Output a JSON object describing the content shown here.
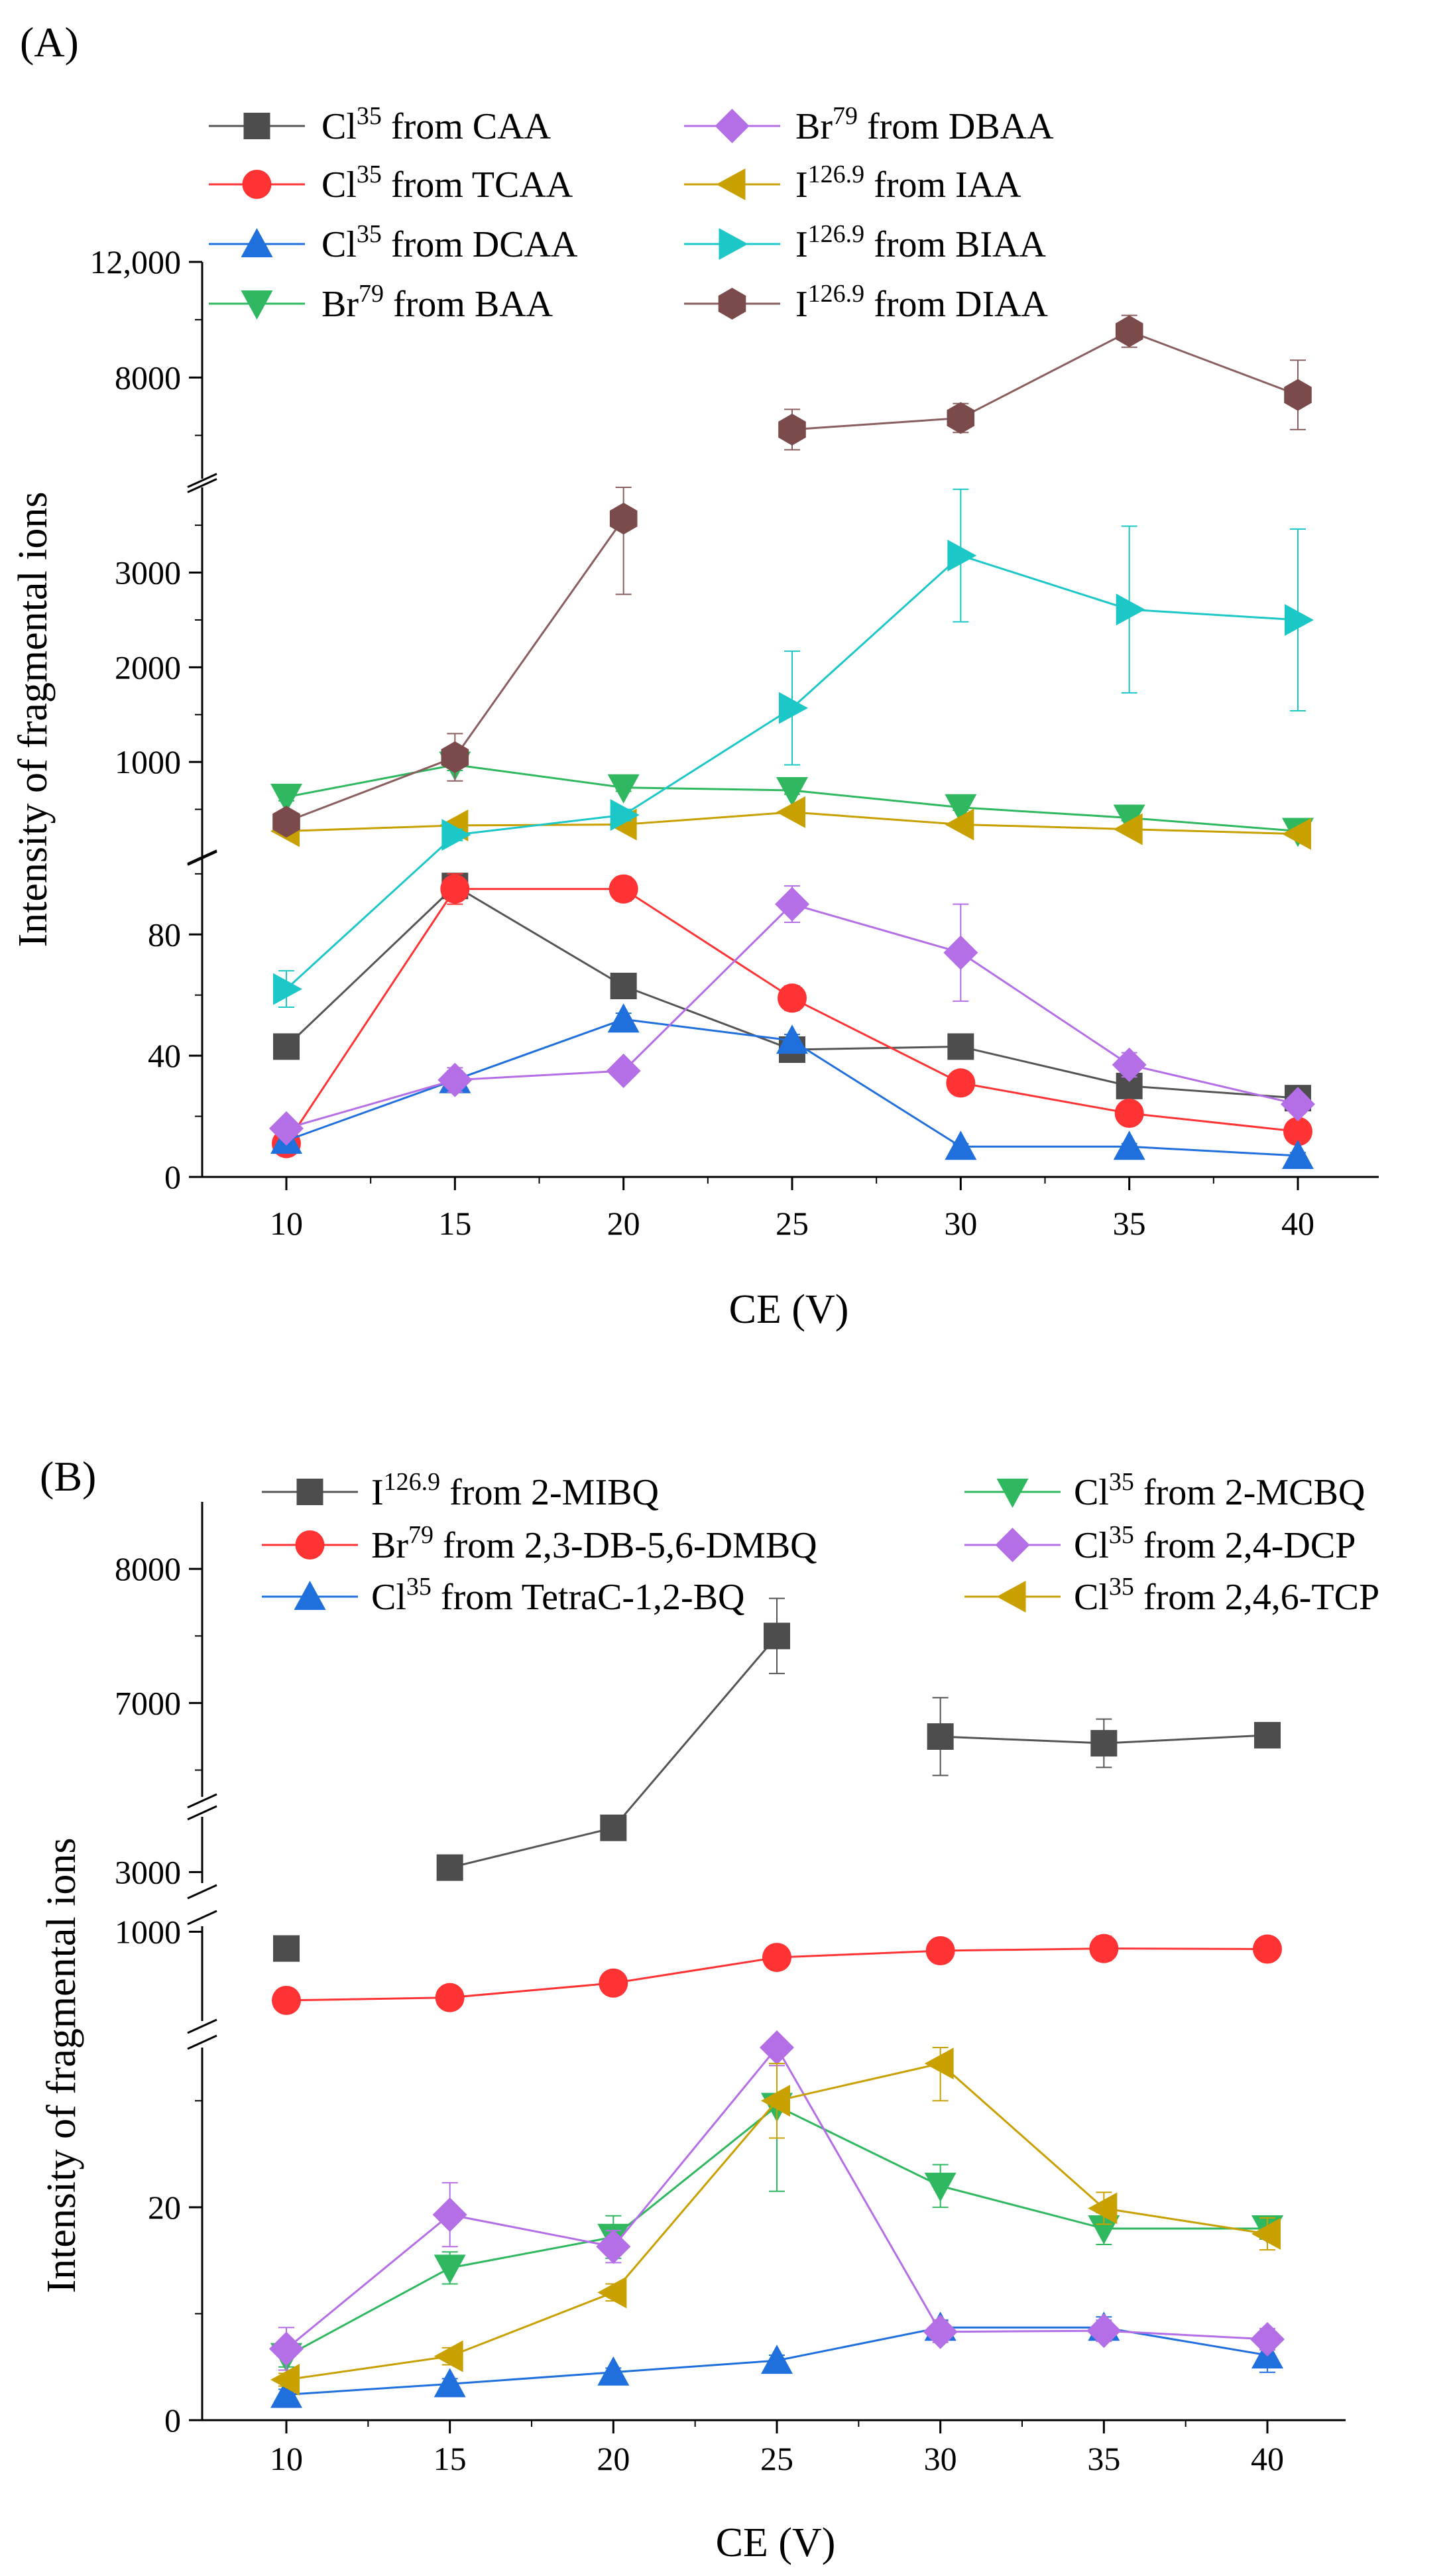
{
  "chart_data": [
    {
      "panel": "(A)",
      "type": "line",
      "xlabel": "CE (V)",
      "ylabel": "Intensity of fragmental ions",
      "x": [
        10,
        15,
        20,
        25,
        30,
        35,
        40
      ],
      "xticks": [
        "10",
        "15",
        "20",
        "25",
        "30",
        "35",
        "40"
      ],
      "segments": [
        {
          "range": [
            0,
            105
          ],
          "ticks": [
            0,
            40,
            80
          ],
          "tick_labels": [
            "0",
            "40",
            "80"
          ]
        },
        {
          "range": [
            0,
            3900
          ],
          "ticks": [
            1000,
            2000,
            3000
          ],
          "tick_labels": [
            "1000",
            "2000",
            "3000"
          ]
        },
        {
          "range": [
            4500,
            12000
          ],
          "ticks": [
            8000,
            12000
          ],
          "tick_labels": [
            "8000",
            "12,000"
          ]
        }
      ],
      "series": [
        {
          "name": "CAA",
          "element": "Cl",
          "mass": "35",
          "label_suffix": " from CAA",
          "marker": "square",
          "color": "#4d4d4d",
          "line_color": "#555555",
          "values": [
            43,
            96,
            63,
            42,
            43,
            30,
            26
          ],
          "errors": [
            3,
            4,
            2,
            2,
            2,
            2,
            2
          ],
          "line_gaps": []
        },
        {
          "name": "TCAA",
          "element": "Cl",
          "mass": "35",
          "label_suffix": " from TCAA",
          "marker": "circle",
          "color": "#ff3333",
          "line_color": "#ff3333",
          "values": [
            11,
            95,
            95,
            59,
            31,
            21,
            15
          ],
          "errors": [
            2,
            5,
            4,
            4,
            2,
            2,
            2
          ],
          "line_gaps": []
        },
        {
          "name": "DCAA",
          "element": "Cl",
          "mass": "35",
          "label_suffix": " from DCAA",
          "marker": "triangle-up",
          "color": "#1f6fdc",
          "line_color": "#1f6fdc",
          "values": [
            12,
            32,
            52,
            45,
            10,
            10,
            7
          ],
          "errors": [
            2,
            3,
            2,
            2,
            1,
            1,
            1
          ],
          "line_gaps": []
        },
        {
          "name": "BAA",
          "element": "Br",
          "mass": "79",
          "label_suffix": " from BAA",
          "marker": "triangle-down",
          "color": "#2fb85f",
          "line_color": "#2fb85f",
          "values": [
            630,
            970,
            730,
            700,
            520,
            410,
            270
          ],
          "errors": [
            40,
            60,
            40,
            40,
            30,
            30,
            30
          ],
          "line_gaps": []
        },
        {
          "name": "DBAA",
          "element": "Br",
          "mass": "79",
          "label_suffix": " from DBAA",
          "marker": "diamond",
          "color": "#b46ee6",
          "line_color": "#b46ee6",
          "values": [
            16,
            32,
            35,
            90,
            74,
            37,
            24
          ],
          "errors": [
            2,
            4,
            2,
            6,
            16,
            4,
            3
          ],
          "line_gaps": []
        },
        {
          "name": "IAA",
          "element": "I",
          "mass": "126.9",
          "label_suffix": " from IAA",
          "marker": "triangle-left",
          "color": "#c8a000",
          "line_color": "#c8a000",
          "values": [
            270,
            330,
            340,
            470,
            340,
            290,
            240
          ],
          "errors": [
            20,
            20,
            30,
            30,
            30,
            20,
            20
          ],
          "line_gaps": []
        },
        {
          "name": "BIAA",
          "element": "I",
          "mass": "126.9",
          "label_suffix": " from BIAA",
          "marker": "triangle-right",
          "color": "#1cc7c7",
          "line_color": "#1cc7c7",
          "values": [
            62,
            230,
            440,
            1570,
            3180,
            2610,
            2500
          ],
          "errors": [
            6,
            60,
            60,
            600,
            700,
            880,
            960
          ],
          "line_gaps": []
        },
        {
          "name": "DIAA",
          "element": "I",
          "mass": "126.9",
          "label_suffix": " from DIAA",
          "marker": "hexagon",
          "color": "#7b4a4a",
          "line_color": "#8a5e5e",
          "values": [
            370,
            1050,
            3570,
            6200,
            6600,
            9600,
            7400
          ],
          "errors": [
            40,
            250,
            800,
            700,
            500,
            550,
            1200
          ],
          "line_gaps": [
            2
          ]
        }
      ]
    },
    {
      "panel": "(B)",
      "type": "line",
      "xlabel": "CE (V)",
      "ylabel": "Intensity of fragmental ions",
      "x": [
        10,
        15,
        20,
        25,
        30,
        35,
        40
      ],
      "xticks": [
        "10",
        "15",
        "20",
        "25",
        "30",
        "35",
        "40"
      ],
      "segments": [
        {
          "range": [
            0,
            35
          ],
          "ticks": [
            0,
            20
          ],
          "tick_labels": [
            "0",
            "20"
          ]
        },
        {
          "range": [
            200,
            1050
          ],
          "ticks": [
            1000
          ],
          "tick_labels": [
            "1000"
          ]
        },
        {
          "range": [
            2500,
            5500
          ],
          "ticks": [
            3000
          ],
          "tick_labels": [
            "3000"
          ]
        },
        {
          "range": [
            6300,
            8500
          ],
          "ticks": [
            7000,
            8000
          ],
          "tick_labels": [
            "7000",
            "8000"
          ]
        }
      ],
      "series": [
        {
          "name": "2-MIBQ",
          "element": "I",
          "mass": "126.9",
          "label_suffix": " from 2-MIBQ",
          "marker": "square",
          "color": "#4d4d4d",
          "line_color": "#555555",
          "values": [
            850,
            3200,
            5000,
            7500,
            6750,
            6700,
            6760
          ],
          "errors": [
            20,
            40,
            100,
            280,
            290,
            180,
            80
          ],
          "line_gaps": [
            0,
            3
          ]
        },
        {
          "name": "2,3-DB-5,6-DMBQ",
          "element": "Br",
          "mass": "79",
          "label_suffix": " from 2,3-DB-5,6-DMBQ",
          "marker": "circle",
          "color": "#ff3333",
          "line_color": "#ff3333",
          "values": [
            385,
            410,
            540,
            770,
            830,
            850,
            845
          ],
          "errors": [
            10,
            10,
            15,
            30,
            40,
            110,
            20
          ],
          "line_gaps": []
        },
        {
          "name": "TetraC-1,2-BQ",
          "element": "Cl",
          "mass": "35",
          "label_suffix": " from TetraC-1,2-BQ",
          "marker": "triangle-up",
          "color": "#1f6fdc",
          "line_color": "#1f6fdc",
          "values": [
            2.4,
            3.4,
            4.5,
            5.6,
            8.7,
            8.7,
            6.1
          ],
          "errors": [
            0.5,
            0.5,
            0.4,
            0.5,
            0.7,
            1.0,
            1.6
          ],
          "line_gaps": []
        },
        {
          "name": "2-MCBQ",
          "element": "Cl",
          "mass": "35",
          "label_suffix": " from 2-MCBQ",
          "marker": "triangle-down",
          "color": "#2fb85f",
          "line_color": "#2fb85f",
          "values": [
            6.0,
            14.3,
            17.2,
            29.5,
            22.0,
            18.0,
            18.0
          ],
          "errors": [
            1.0,
            1.5,
            2.0,
            8.0,
            2.0,
            1.5,
            1.0
          ],
          "line_gaps": []
        },
        {
          "name": "2,4-DCP",
          "element": "Cl",
          "mass": "35",
          "label_suffix": " from 2,4-DCP",
          "marker": "diamond",
          "color": "#b46ee6",
          "line_color": "#b46ee6",
          "values": [
            6.7,
            19.3,
            16.3,
            35.8,
            8.3,
            8.4,
            7.6
          ],
          "errors": [
            2.0,
            3.0,
            1.5,
            2.5,
            1.0,
            1.0,
            1.0
          ],
          "line_gaps": []
        },
        {
          "name": "2,4,6-TCP",
          "element": "Cl",
          "mass": "35",
          "label_suffix": " from 2,4,6-TCP",
          "marker": "triangle-left",
          "color": "#c8a000",
          "line_color": "#c8a000",
          "values": [
            3.8,
            6.0,
            12.0,
            30.0,
            33.5,
            19.9,
            17.5
          ],
          "errors": [
            0.6,
            0.8,
            0.8,
            3.5,
            3.5,
            1.5,
            1.5
          ],
          "line_gaps": []
        }
      ]
    }
  ]
}
